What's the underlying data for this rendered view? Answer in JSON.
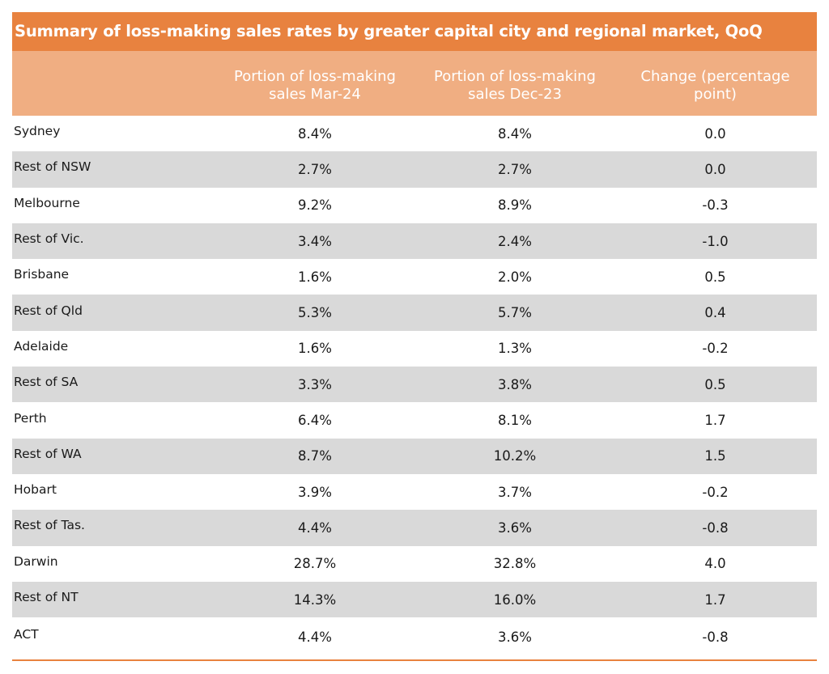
{
  "chart_data": {
    "type": "table",
    "title": "Summary of loss-making sales rates by greater capital city and regional market, QoQ",
    "columns": [
      "",
      "Portion of loss-making sales Mar-24",
      "Portion of loss-making sales Dec-23",
      "Change (percentage point)"
    ],
    "rows": [
      {
        "label": "Sydney",
        "mar24": "8.4%",
        "dec23": "8.4%",
        "change": "0.0"
      },
      {
        "label": "Rest of NSW",
        "mar24": "2.7%",
        "dec23": "2.7%",
        "change": "0.0"
      },
      {
        "label": "Melbourne",
        "mar24": "9.2%",
        "dec23": "8.9%",
        "change": "-0.3"
      },
      {
        "label": "Rest of Vic.",
        "mar24": "3.4%",
        "dec23": "2.4%",
        "change": "-1.0"
      },
      {
        "label": "Brisbane",
        "mar24": "1.6%",
        "dec23": "2.0%",
        "change": "0.5"
      },
      {
        "label": "Rest of Qld",
        "mar24": "5.3%",
        "dec23": "5.7%",
        "change": "0.4"
      },
      {
        "label": "Adelaide",
        "mar24": "1.6%",
        "dec23": "1.3%",
        "change": "-0.2"
      },
      {
        "label": "Rest of SA",
        "mar24": "3.3%",
        "dec23": "3.8%",
        "change": "0.5"
      },
      {
        "label": "Perth",
        "mar24": "6.4%",
        "dec23": "8.1%",
        "change": "1.7"
      },
      {
        "label": "Rest of WA",
        "mar24": "8.7%",
        "dec23": "10.2%",
        "change": "1.5"
      },
      {
        "label": "Hobart",
        "mar24": "3.9%",
        "dec23": "3.7%",
        "change": "-0.2"
      },
      {
        "label": "Rest of Tas.",
        "mar24": "4.4%",
        "dec23": "3.6%",
        "change": "-0.8"
      },
      {
        "label": "Darwin",
        "mar24": "28.7%",
        "dec23": "32.8%",
        "change": "4.0"
      },
      {
        "label": "Rest of NT",
        "mar24": "14.3%",
        "dec23": "16.0%",
        "change": "1.7"
      },
      {
        "label": "ACT",
        "mar24": "4.4%",
        "dec23": "3.6%",
        "change": "-0.8"
      }
    ]
  },
  "colors": {
    "title_bg": "#E8823F",
    "header_bg": "#F0AE82",
    "alt_row_bg": "#D9D9D9",
    "rule": "#E8823F"
  }
}
